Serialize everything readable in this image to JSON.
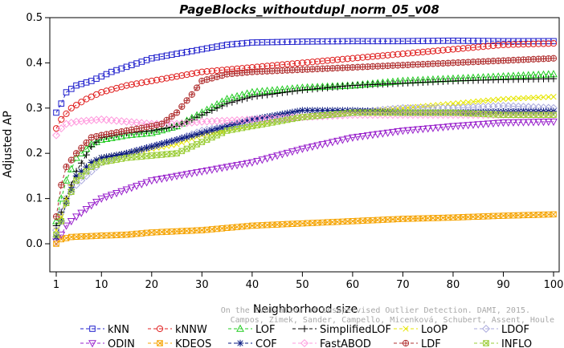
{
  "chart_data": {
    "type": "line",
    "title": "PageBlocks_withoutdupl_norm_05_v08",
    "xlabel": "Neighborhood size",
    "ylabel": "Adjusted AP",
    "xlim": [
      1,
      100
    ],
    "ylim": [
      0,
      0.5
    ],
    "xticks": [
      "1",
      "10",
      "20",
      "30",
      "40",
      "50",
      "60",
      "70",
      "80",
      "90",
      "100"
    ],
    "yticks": [
      "0.0",
      "0.1",
      "0.2",
      "0.3",
      "0.4",
      "0.5"
    ],
    "grid": false,
    "legend_position": "bottom",
    "credit_line1": "Campos, Zimek, Sander, Campello, Micenková, Schubert, Assent, Houle",
    "credit_line2": "On the Evaluation of Unsupervised Outlier Detection. DAMI, 2015.",
    "series": [
      {
        "name": "kNN",
        "color": "#1f1fcc",
        "marker": "square",
        "points": [
          [
            1,
            0.29
          ],
          [
            2,
            0.31
          ],
          [
            3,
            0.335
          ],
          [
            5,
            0.35
          ],
          [
            8,
            0.36
          ],
          [
            12,
            0.38
          ],
          [
            16,
            0.395
          ],
          [
            20,
            0.41
          ],
          [
            25,
            0.42
          ],
          [
            30,
            0.43
          ],
          [
            35,
            0.44
          ],
          [
            40,
            0.445
          ],
          [
            50,
            0.447
          ],
          [
            60,
            0.448
          ],
          [
            70,
            0.448
          ],
          [
            80,
            0.449
          ],
          [
            90,
            0.448
          ],
          [
            100,
            0.448
          ]
        ]
      },
      {
        "name": "kNNW",
        "color": "#e02020",
        "marker": "circle",
        "points": [
          [
            1,
            0.255
          ],
          [
            2,
            0.275
          ],
          [
            4,
            0.3
          ],
          [
            7,
            0.32
          ],
          [
            10,
            0.335
          ],
          [
            15,
            0.35
          ],
          [
            20,
            0.36
          ],
          [
            25,
            0.37
          ],
          [
            30,
            0.38
          ],
          [
            40,
            0.39
          ],
          [
            50,
            0.4
          ],
          [
            60,
            0.41
          ],
          [
            70,
            0.42
          ],
          [
            80,
            0.43
          ],
          [
            90,
            0.44
          ],
          [
            100,
            0.443
          ]
        ]
      },
      {
        "name": "LOF",
        "color": "#22cc22",
        "marker": "triangle-up",
        "points": [
          [
            1,
            0.05
          ],
          [
            2,
            0.1
          ],
          [
            3,
            0.14
          ],
          [
            5,
            0.19
          ],
          [
            8,
            0.22
          ],
          [
            10,
            0.23
          ],
          [
            15,
            0.24
          ],
          [
            20,
            0.245
          ],
          [
            25,
            0.26
          ],
          [
            30,
            0.29
          ],
          [
            35,
            0.32
          ],
          [
            40,
            0.335
          ],
          [
            50,
            0.345
          ],
          [
            60,
            0.35
          ],
          [
            70,
            0.36
          ],
          [
            80,
            0.365
          ],
          [
            90,
            0.37
          ],
          [
            100,
            0.375
          ]
        ]
      },
      {
        "name": "SimplifiedLOF",
        "color": "#000000",
        "marker": "plus",
        "points": [
          [
            1,
            0.04
          ],
          [
            2,
            0.07
          ],
          [
            3,
            0.1
          ],
          [
            5,
            0.16
          ],
          [
            8,
            0.215
          ],
          [
            10,
            0.235
          ],
          [
            15,
            0.245
          ],
          [
            20,
            0.25
          ],
          [
            25,
            0.26
          ],
          [
            30,
            0.285
          ],
          [
            35,
            0.31
          ],
          [
            40,
            0.325
          ],
          [
            50,
            0.34
          ],
          [
            60,
            0.35
          ],
          [
            70,
            0.355
          ],
          [
            80,
            0.36
          ],
          [
            90,
            0.363
          ],
          [
            100,
            0.365
          ]
        ]
      },
      {
        "name": "LoOP",
        "color": "#e6e600",
        "marker": "x",
        "points": [
          [
            1,
            0.03
          ],
          [
            2,
            0.06
          ],
          [
            3,
            0.1
          ],
          [
            5,
            0.15
          ],
          [
            8,
            0.18
          ],
          [
            10,
            0.19
          ],
          [
            15,
            0.2
          ],
          [
            20,
            0.21
          ],
          [
            25,
            0.22
          ],
          [
            30,
            0.24
          ],
          [
            35,
            0.25
          ],
          [
            40,
            0.26
          ],
          [
            50,
            0.28
          ],
          [
            60,
            0.29
          ],
          [
            70,
            0.3
          ],
          [
            80,
            0.31
          ],
          [
            90,
            0.32
          ],
          [
            100,
            0.325
          ]
        ]
      },
      {
        "name": "LDOF",
        "color": "#aaaadd",
        "marker": "diamond",
        "points": [
          [
            1,
            0.03
          ],
          [
            2,
            0.07
          ],
          [
            3,
            0.1
          ],
          [
            5,
            0.13
          ],
          [
            8,
            0.16
          ],
          [
            10,
            0.18
          ],
          [
            15,
            0.2
          ],
          [
            20,
            0.215
          ],
          [
            25,
            0.23
          ],
          [
            30,
            0.25
          ],
          [
            35,
            0.26
          ],
          [
            40,
            0.27
          ],
          [
            50,
            0.28
          ],
          [
            60,
            0.29
          ],
          [
            70,
            0.3
          ],
          [
            80,
            0.3
          ],
          [
            90,
            0.305
          ],
          [
            100,
            0.3
          ]
        ]
      },
      {
        "name": "ODIN",
        "color": "#9922cc",
        "marker": "triangle-down",
        "points": [
          [
            1,
            0.005
          ],
          [
            2,
            0.02
          ],
          [
            3,
            0.04
          ],
          [
            5,
            0.06
          ],
          [
            8,
            0.085
          ],
          [
            10,
            0.1
          ],
          [
            15,
            0.12
          ],
          [
            20,
            0.14
          ],
          [
            25,
            0.15
          ],
          [
            30,
            0.16
          ],
          [
            35,
            0.17
          ],
          [
            40,
            0.18
          ],
          [
            50,
            0.21
          ],
          [
            60,
            0.235
          ],
          [
            70,
            0.25
          ],
          [
            80,
            0.26
          ],
          [
            90,
            0.268
          ],
          [
            100,
            0.27
          ]
        ]
      },
      {
        "name": "KDEOS",
        "color": "#f5a300",
        "marker": "square-x",
        "points": [
          [
            1,
            0.0
          ],
          [
            2,
            0.01
          ],
          [
            4,
            0.015
          ],
          [
            8,
            0.017
          ],
          [
            10,
            0.018
          ],
          [
            15,
            0.02
          ],
          [
            20,
            0.025
          ],
          [
            30,
            0.03
          ],
          [
            40,
            0.04
          ],
          [
            50,
            0.045
          ],
          [
            60,
            0.05
          ],
          [
            70,
            0.055
          ],
          [
            80,
            0.058
          ],
          [
            90,
            0.062
          ],
          [
            100,
            0.065
          ]
        ]
      },
      {
        "name": "COF",
        "color": "#0a1a80",
        "marker": "asterisk",
        "points": [
          [
            1,
            0.015
          ],
          [
            2,
            0.05
          ],
          [
            3,
            0.09
          ],
          [
            5,
            0.15
          ],
          [
            8,
            0.18
          ],
          [
            10,
            0.19
          ],
          [
            15,
            0.2
          ],
          [
            20,
            0.215
          ],
          [
            25,
            0.23
          ],
          [
            30,
            0.245
          ],
          [
            35,
            0.26
          ],
          [
            40,
            0.275
          ],
          [
            50,
            0.295
          ],
          [
            60,
            0.295
          ],
          [
            70,
            0.29
          ],
          [
            80,
            0.29
          ],
          [
            90,
            0.292
          ],
          [
            100,
            0.293
          ]
        ]
      },
      {
        "name": "FastABOD",
        "color": "#ff99dd",
        "marker": "diamond",
        "points": [
          [
            1,
            0.24
          ],
          [
            2,
            0.255
          ],
          [
            3,
            0.265
          ],
          [
            5,
            0.27
          ],
          [
            10,
            0.275
          ],
          [
            15,
            0.27
          ],
          [
            20,
            0.265
          ],
          [
            25,
            0.265
          ],
          [
            30,
            0.27
          ],
          [
            35,
            0.272
          ],
          [
            40,
            0.275
          ],
          [
            50,
            0.28
          ],
          [
            60,
            0.285
          ],
          [
            70,
            0.285
          ],
          [
            80,
            0.285
          ],
          [
            90,
            0.285
          ],
          [
            100,
            0.285
          ]
        ]
      },
      {
        "name": "LDF",
        "color": "#b03030",
        "marker": "circle-plus",
        "points": [
          [
            1,
            0.06
          ],
          [
            2,
            0.13
          ],
          [
            3,
            0.17
          ],
          [
            5,
            0.2
          ],
          [
            8,
            0.235
          ],
          [
            10,
            0.24
          ],
          [
            15,
            0.25
          ],
          [
            20,
            0.26
          ],
          [
            22,
            0.265
          ],
          [
            25,
            0.29
          ],
          [
            28,
            0.33
          ],
          [
            30,
            0.36
          ],
          [
            35,
            0.375
          ],
          [
            40,
            0.38
          ],
          [
            50,
            0.385
          ],
          [
            60,
            0.39
          ],
          [
            70,
            0.395
          ],
          [
            80,
            0.4
          ],
          [
            90,
            0.405
          ],
          [
            100,
            0.41
          ]
        ]
      },
      {
        "name": "INFLO",
        "color": "#99cc33",
        "marker": "square-x",
        "points": [
          [
            1,
            0.02
          ],
          [
            2,
            0.05
          ],
          [
            3,
            0.09
          ],
          [
            5,
            0.14
          ],
          [
            8,
            0.17
          ],
          [
            10,
            0.18
          ],
          [
            15,
            0.19
          ],
          [
            20,
            0.195
          ],
          [
            25,
            0.2
          ],
          [
            30,
            0.225
          ],
          [
            35,
            0.25
          ],
          [
            40,
            0.26
          ],
          [
            50,
            0.28
          ],
          [
            60,
            0.29
          ],
          [
            70,
            0.29
          ],
          [
            80,
            0.29
          ],
          [
            90,
            0.285
          ],
          [
            100,
            0.285
          ]
        ]
      }
    ]
  }
}
